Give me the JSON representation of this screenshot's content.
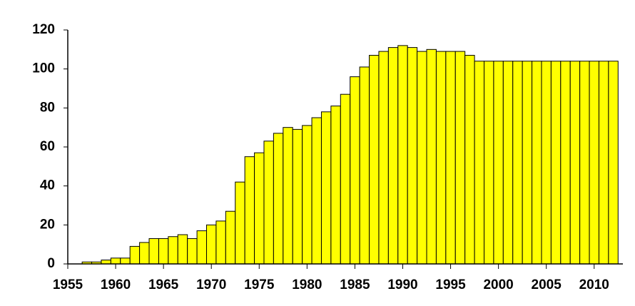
{
  "chart_data": {
    "type": "bar",
    "x": [
      1957,
      1958,
      1959,
      1960,
      1961,
      1962,
      1963,
      1964,
      1965,
      1966,
      1967,
      1968,
      1969,
      1970,
      1971,
      1972,
      1973,
      1974,
      1975,
      1976,
      1977,
      1978,
      1979,
      1980,
      1981,
      1982,
      1983,
      1984,
      1985,
      1986,
      1987,
      1988,
      1989,
      1990,
      1991,
      1992,
      1993,
      1994,
      1995,
      1996,
      1997,
      1998,
      1999,
      2000,
      2001,
      2002,
      2003,
      2004,
      2005,
      2006,
      2007,
      2008,
      2009,
      2010,
      2011,
      2012
    ],
    "values": [
      1,
      1,
      2,
      3,
      3,
      9,
      11,
      13,
      13,
      14,
      15,
      13,
      17,
      20,
      22,
      27,
      42,
      55,
      57,
      63,
      67,
      70,
      69,
      71,
      75,
      78,
      81,
      87,
      96,
      101,
      107,
      109,
      111,
      112,
      111,
      109,
      110,
      109,
      109,
      109,
      107,
      104,
      104,
      104,
      104,
      104,
      104,
      104,
      104,
      104,
      104,
      104,
      104,
      104,
      104,
      104
    ],
    "color": "#ffff00",
    "xlim": [
      1955,
      2013
    ],
    "xticks": [
      1955,
      1960,
      1965,
      1970,
      1975,
      1980,
      1985,
      1990,
      1995,
      2000,
      2005,
      2010
    ],
    "ylim": [
      0,
      120
    ],
    "yticks": [
      0,
      20,
      40,
      60,
      80,
      100,
      120
    ],
    "grid": false
  }
}
